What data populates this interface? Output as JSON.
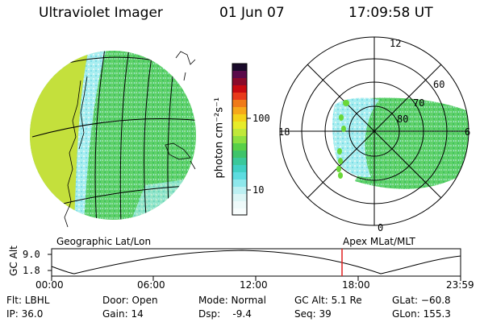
{
  "header": {
    "instrument": "Ultraviolet Imager",
    "date": "01 Jun 07",
    "time": "17:09:58 UT"
  },
  "colorbar": {
    "unit_label": "photon cm⁻²s⁻¹",
    "ticks": [
      "100",
      "10"
    ]
  },
  "polar_plot": {
    "mlt_labels": [
      "12",
      "18",
      "6",
      "0"
    ],
    "lat_labels": [
      "60",
      "70",
      "80"
    ]
  },
  "panel_labels": {
    "left": "Geographic Lat/Lon",
    "right": "Apex MLat/MLT"
  },
  "altitude_chart": {
    "axis_title": "GC Alt",
    "y_ticks": [
      "9.0",
      "1.8"
    ],
    "x_ticks": [
      "00:00",
      "06:00",
      "12:00",
      "18:00",
      "23:59"
    ]
  },
  "status": {
    "flt": "Flt: LBHL",
    "ip": "IP: 36.0",
    "door": "Door: Open",
    "gain": "Gain: 14",
    "mode": "Mode: Normal",
    "dsp": "Dsp:    -9.4",
    "gc_alt": "GC Alt: 5.1 Re",
    "seq": "Seq: 39",
    "glat": "GLat: −60.8",
    "glon": "GLon: 155.3"
  },
  "colors": {
    "aurora_green": "#3fcf3f",
    "aurora_yellow": "#c8e23a",
    "aurora_cyan": "#7fe0e8",
    "time_marker": "#e02020"
  }
}
